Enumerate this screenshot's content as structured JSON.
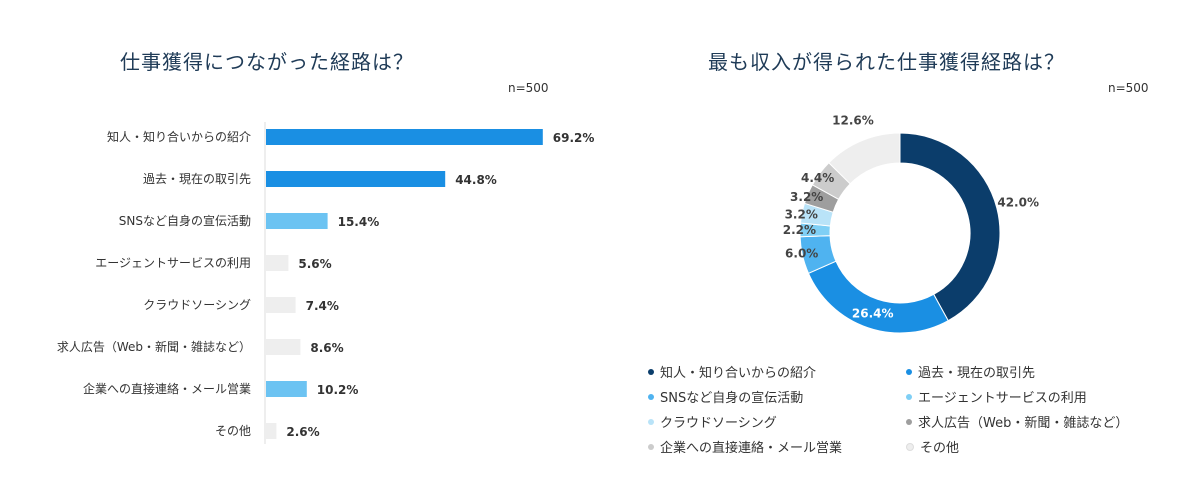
{
  "charts": [
    {
      "title": "仕事獲得につながった経路は？",
      "n_label": "n=500"
    },
    {
      "title": "最も収入が得られた仕事獲得経路は？",
      "n_label": "n=500"
    }
  ],
  "chart_data": [
    {
      "type": "bar",
      "orientation": "horizontal",
      "title": "仕事獲得につながった経路は？",
      "categories": [
        "知人・知り合いからの紹介",
        "過去・現在の取引先",
        "SNSなど自身の宣伝活動",
        "エージェントサービスの利用",
        "クラウドソーシング",
        "求人広告（Web・新聞・雑誌など）",
        "企業への直接連絡・メール営業",
        "その他"
      ],
      "values": [
        69.2,
        44.8,
        15.4,
        5.6,
        7.4,
        8.6,
        10.2,
        2.6
      ],
      "value_labels": [
        "69.2%",
        "44.8%",
        "15.4%",
        "5.6%",
        "7.4%",
        "8.6%",
        "10.2%",
        "2.6%"
      ],
      "colors": [
        "#1a8fe3",
        "#1a8fe3",
        "#6cc3f2",
        "#eeeeee",
        "#eeeeee",
        "#eeeeee",
        "#6cc3f2",
        "#eeeeee"
      ],
      "xlim": [
        0,
        100
      ]
    },
    {
      "type": "pie",
      "style": "donut",
      "title": "最も収入が得られた仕事獲得経路は？",
      "labels": [
        "知人・知り合いからの紹介",
        "過去・現在の取引先",
        "SNSなど自身の宣伝活動",
        "エージェントサービスの利用",
        "クラウドソーシング",
        "求人広告（Web・新聞・雑誌など）",
        "企業への直接連絡・メール営業",
        "その他"
      ],
      "values": [
        42.0,
        26.4,
        6.0,
        2.2,
        3.2,
        3.2,
        4.4,
        12.6
      ],
      "value_labels": [
        "42.0%",
        "26.4%",
        "6.0%",
        "2.2%",
        "3.2%",
        "3.2%",
        "4.4%",
        "12.6%"
      ],
      "colors": [
        "#0b3d6b",
        "#1a8fe3",
        "#4fb3f0",
        "#7fcff5",
        "#b9e3f8",
        "#9e9e9e",
        "#cccccc",
        "#eeeeee"
      ],
      "legend_position": "bottom"
    }
  ]
}
